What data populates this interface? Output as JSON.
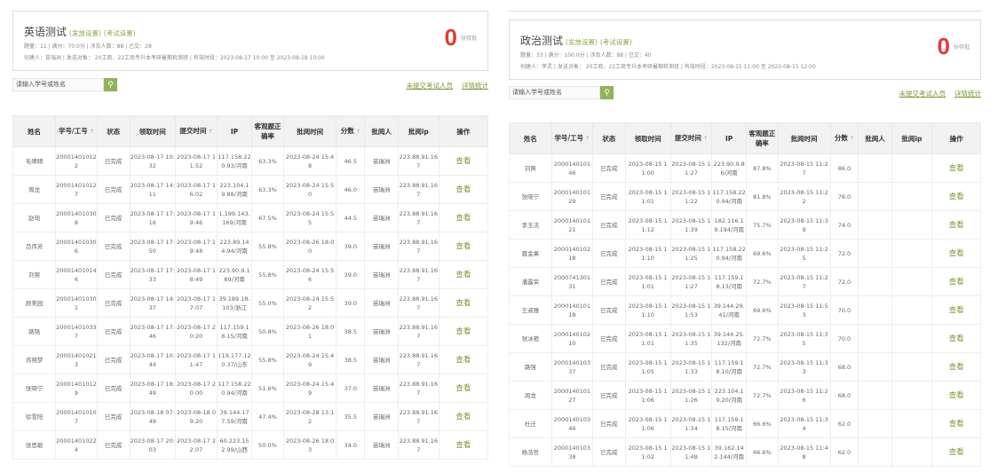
{
  "columns": [
    "姓名",
    "学号/工号",
    "状态",
    "领取时间",
    "提交时间",
    "IP",
    "客观题正确率",
    "批阅时间",
    "分数",
    "批阅人",
    "批阅ip",
    "操作"
  ],
  "sortable": [
    1,
    4,
    8
  ],
  "sort_icon": "arrow-up-icon",
  "accent": "#8fb35a",
  "count_color": "#e53935",
  "panels": [
    {
      "id": "left",
      "title": "英语测试",
      "link1": "(发放设置)",
      "link2": "(考试设置)",
      "meta1": "题量：11 | 满分：70.0分 | 涉及人数：88 | 已交：28",
      "meta2": "创建人：苗瑞洲 | 发送对象： 20工商，22工商专升本考研暑期检测班 | 有效时段：2023-08-17 10:00 至 2023-08-18 10:00",
      "pending": "0",
      "pending_label": "份待批",
      "search_placeholder": "请输入学号或姓名",
      "unsubmitted": "未提交考试人员",
      "stats": "详情统计",
      "rows": [
        [
          "毛晴晴",
          "200014010122",
          "已完成",
          "2023-08-17 10:32",
          "2023-08-17 11:52",
          "117.158.220.93/河南",
          "63.3%",
          "2023-08-24 15:48",
          "46.5",
          "苗瑞洲",
          "223.88.91.167",
          "查看"
        ],
        [
          "周龙",
          "200014010127",
          "已完成",
          "2023-08-17 14:11",
          "2023-08-17 16:02",
          "223.104.19.88/河南",
          "63.3%",
          "2023-08-24 15:50",
          "46.0",
          "苗瑞洲",
          "223.88.91.167",
          "查看"
        ],
        [
          "赵萌",
          "200014010308",
          "已完成",
          "2023-08-17 17:16",
          "2023-08-17 19:46",
          "1.199.143.169/河南",
          "67.5%",
          "2023-08-24 15:55",
          "44.5",
          "苗瑞洲",
          "223.88.91.167",
          "查看"
        ],
        [
          "吕伟芳",
          "200014010306",
          "已完成",
          "2023-08-17 17:50",
          "2023-08-17 19:48",
          "223.89.144.94/河南",
          "55.8%",
          "2023-08-26 18:00",
          "39.0",
          "苗瑞洲",
          "223.88.91.167",
          "查看"
        ],
        [
          "刘爽",
          "200014010146",
          "已完成",
          "2023-08-17 17:33",
          "2023-08-17 18:49",
          "223.90.9.189/河南",
          "55.8%",
          "2023-08-24 15:56",
          "39.0",
          "苗瑞洲",
          "223.88.91.167",
          "查看"
        ],
        [
          "顾美园",
          "200014010301",
          "已完成",
          "2023-08-17 14:37",
          "2023-08-17 17:07",
          "39.189.18.103/浙江",
          "55.0%",
          "2023-08-24 15:52",
          "39.0",
          "苗瑞洲",
          "223.88.91.167",
          "查看"
        ],
        [
          "路强",
          "200014010337",
          "已完成",
          "2023-08-17 17:46",
          "2023-08-17 20:20",
          "117.159.18.15/河南",
          "50.8%",
          "2023-08-26 18:01",
          "38.5",
          "苗瑞洲",
          "223.88.91.167",
          "查看"
        ],
        [
          "苏晓梦",
          "200014010213",
          "已完成",
          "2023-08-17 10:44",
          "2023-08-17 11:47",
          "119.177.120.37/山东",
          "55.8%",
          "2023-08-24 15:49",
          "38.5",
          "苗瑞洲",
          "223.88.91.167",
          "查看"
        ],
        [
          "张晓宁",
          "200014010129",
          "已完成",
          "2023-08-17 18:49",
          "2023-08-17 20:00",
          "117.158.220.94/河南",
          "51.6%",
          "2023-08-24 15:49",
          "37.0",
          "苗瑞洲",
          "223.88.91.167",
          "查看"
        ],
        [
          "徐雪阳",
          "200014010107",
          "已完成",
          "2023-08-18 07:49",
          "2023-08-18 09:20",
          "39.144.177.59/河南",
          "47.4%",
          "2023-08-28 13:12",
          "35.5",
          "苗瑞洲",
          "223.88.91.167",
          "查看"
        ],
        [
          "张思敏",
          "200014010224",
          "已完成",
          "2023-08-17 20:03",
          "2023-08-17 22:07",
          "60.223.152.99/山西",
          "50.0%",
          "2023-08-26 18:03",
          "34.0",
          "苗瑞洲",
          "223.88.91.167",
          "查看"
        ]
      ]
    },
    {
      "id": "right",
      "title": "政治测试",
      "link1": "(发放设置)",
      "link2": "(考试设置)",
      "meta1": "题量：33 | 满分：100.0分 | 涉及人数：88 | 已交：40",
      "meta2": "创建人：李灵 | 发送对象： 20工商，22工商专升本考研暑期检测班 | 有效时段：2023-08-15 11:00 至 2023-08-15 12:00",
      "pending": "0",
      "pending_label": "份待批",
      "search_placeholder": "请输入学号或姓名",
      "unsubmitted": "未提交考试人员",
      "stats": "详情统计",
      "rows": [
        [
          "刘爽",
          "200014010146",
          "已完成",
          "2023-08-15 11:00",
          "2023-08-15 11:27",
          "223.90.9.86/河南",
          "87.8%",
          "2023-08-15 11:27",
          "86.0",
          "",
          "",
          "查看"
        ],
        [
          "张晓宁",
          "200014010129",
          "已完成",
          "2023-08-15 11:01",
          "2023-08-15 11:22",
          "117.158.220.94/河南",
          "81.8%",
          "2023-08-15 11:22",
          "78.0",
          "",
          "",
          "查看"
        ],
        [
          "李玉洁",
          "200014010121",
          "已完成",
          "2023-08-15 11:12",
          "2023-08-15 11:39",
          "182.116.19.194/河南",
          "75.7%",
          "2023-08-15 11:39",
          "74.0",
          "",
          "",
          "查看"
        ],
        [
          "聂金果",
          "200014010218",
          "已完成",
          "2023-08-15 11:10",
          "2023-08-15 11:25",
          "117.158.220.94/河南",
          "69.6%",
          "2023-08-15 11:25",
          "72.0",
          "",
          "",
          "查看"
        ],
        [
          "潘露荣",
          "200074130131",
          "已完成",
          "2023-08-15 11:01",
          "2023-08-15 11:27",
          "117.159.18.13/河南",
          "72.7%",
          "2023-08-15 11:27",
          "72.0",
          "",
          "",
          "查看"
        ],
        [
          "王淑雅",
          "200014010118",
          "已完成",
          "2023-08-15 11:10",
          "2023-08-15 11:53",
          "39.144.29.41/河南",
          "69.6%",
          "2023-08-15 11:53",
          "70.0",
          "",
          "",
          "查看"
        ],
        [
          "张冰艳",
          "200014010210",
          "已完成",
          "2023-08-15 11:01",
          "2023-08-15 11:35",
          "39.144.25.132/河南",
          "72.7%",
          "2023-08-15 11:35",
          "70.0",
          "",
          "",
          "查看"
        ],
        [
          "路强",
          "200014010337",
          "已完成",
          "2023-08-15 11:05",
          "2023-08-15 11:33",
          "117.159.18.10/河南",
          "72.7%",
          "2023-08-15 11:33",
          "68.0",
          "",
          "",
          "查看"
        ],
        [
          "周龙",
          "200014010127",
          "已完成",
          "2023-08-15 11:06",
          "2023-08-15 11:26",
          "223.104.19.20/河南",
          "72.7%",
          "2023-08-15 11:26",
          "68.0",
          "",
          "",
          "查看"
        ],
        [
          "杜迁",
          "200014010346",
          "已完成",
          "2023-08-15 11:06",
          "2023-08-15 11:34",
          "117.159.18.15/河南",
          "66.6%",
          "2023-08-15 11:34",
          "62.0",
          "",
          "",
          "查看"
        ],
        [
          "杨浩哲",
          "200014010338",
          "已完成",
          "2023-08-15 11:02",
          "2023-08-15 11:48",
          "39.162.142.144/河南",
          "66.6%",
          "2023-08-15 11:48",
          "62.0",
          "",
          "",
          "查看"
        ]
      ]
    }
  ]
}
